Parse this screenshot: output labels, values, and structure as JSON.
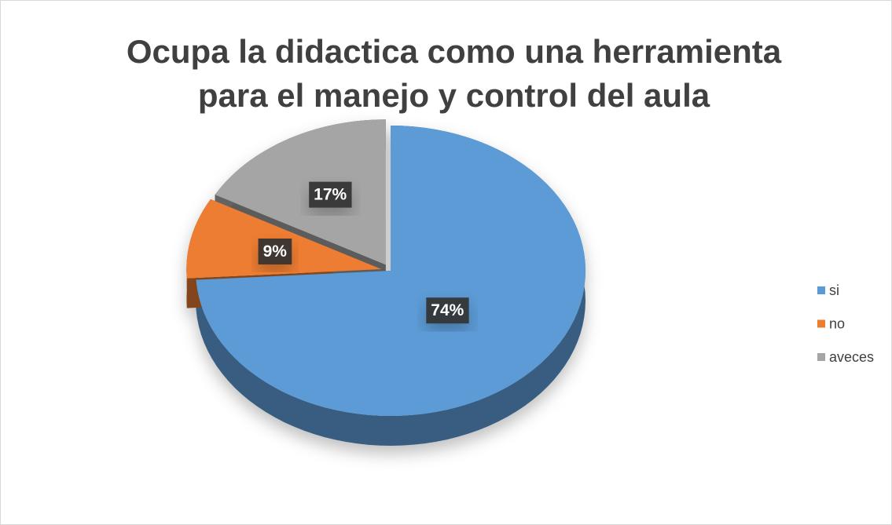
{
  "chart_data": {
    "type": "pie",
    "title": "Ocupa la didactica como una herramienta para el manejo y control del aula",
    "categories": [
      "si",
      "no",
      "aveces"
    ],
    "values": [
      74,
      9,
      17
    ],
    "value_labels": [
      "74%",
      "9%",
      "17%"
    ],
    "colors": [
      "#5b9bd5",
      "#ed7d31",
      "#a5a5a5"
    ],
    "legend": "right"
  }
}
